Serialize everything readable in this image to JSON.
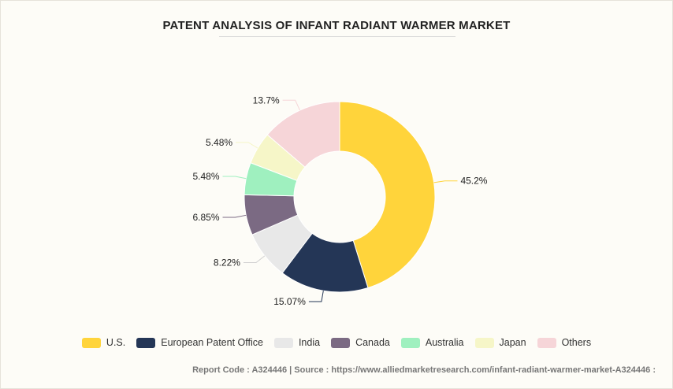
{
  "chart_data": {
    "type": "pie",
    "title": "PATENT ANALYSIS OF INFANT RADIANT WARMER MARKET",
    "categories": [
      "U.S.",
      "European Patent Office",
      "India",
      "Canada",
      "Australia",
      "Japan",
      "Others"
    ],
    "values": [
      45.2,
      15.07,
      8.22,
      6.85,
      5.48,
      5.48,
      13.7
    ],
    "data_labels": [
      "45.2%",
      "15.07%",
      "8.22%",
      "6.85%",
      "5.48%",
      "5.48%",
      "13.7%"
    ],
    "colors": [
      "#ffd43b",
      "#243656",
      "#e8e8e8",
      "#7b6a83",
      "#9ff0bf",
      "#f6f6c8",
      "#f6d5d8"
    ],
    "donut": true,
    "legend_position": "bottom"
  },
  "footer": {
    "text": "Report Code : A324446  |  Source : https://www.alliedmarketresearch.com/infant-radiant-warmer-market-A324446 :"
  }
}
